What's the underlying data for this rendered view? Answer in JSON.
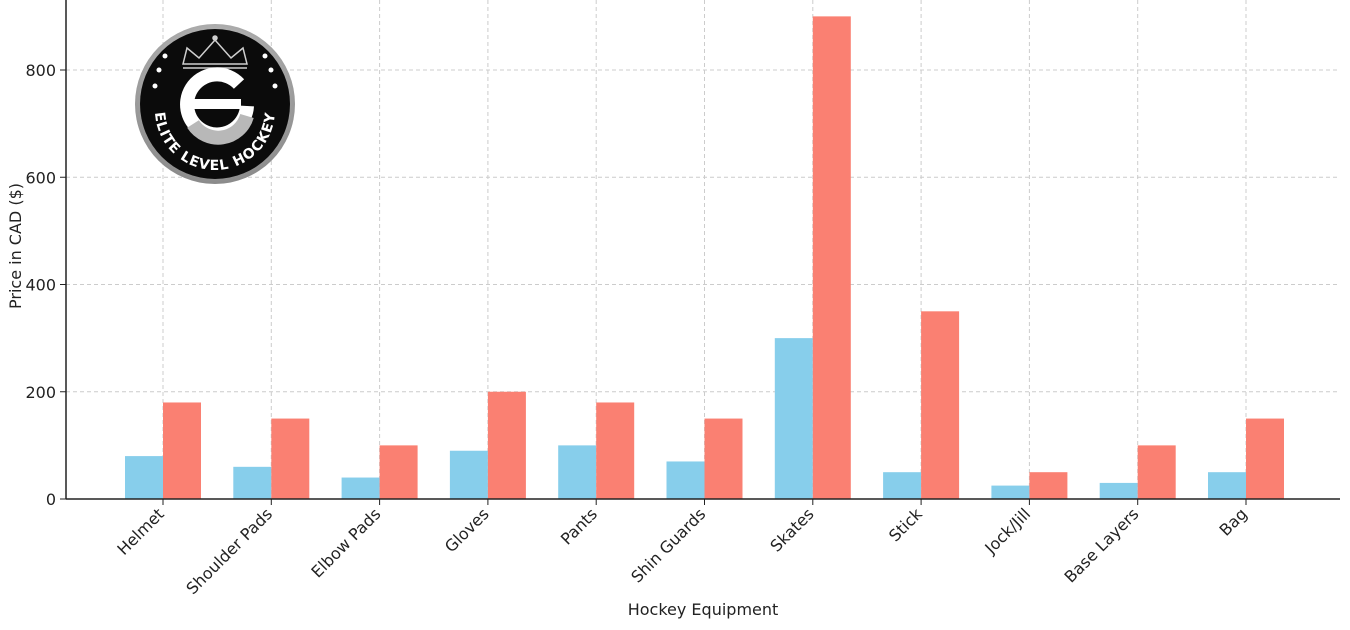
{
  "chart_data": {
    "type": "bar",
    "title": "",
    "xlabel": "Hockey Equipment",
    "ylabel": "Price in CAD ($)",
    "categories": [
      "Helmet",
      "Shoulder Pads",
      "Elbow Pads",
      "Gloves",
      "Pants",
      "Shin Guards",
      "Skates",
      "Stick",
      "Jock/Jill",
      "Base Layers",
      "Bag"
    ],
    "series": [
      {
        "values": [
          80,
          60,
          40,
          90,
          100,
          70,
          300,
          50,
          25,
          30,
          50
        ],
        "color": "#87CEEB"
      },
      {
        "values": [
          180,
          150,
          100,
          200,
          180,
          150,
          900,
          350,
          50,
          100,
          150
        ],
        "color": "#FA8072"
      }
    ],
    "yticks": [
      0,
      200,
      400,
      600,
      800
    ],
    "ylim": [
      0,
      900
    ],
    "grid": true,
    "legend": "none"
  },
  "logo": {
    "name": "ELITE LEVEL HOCKEY",
    "letter": "e"
  }
}
